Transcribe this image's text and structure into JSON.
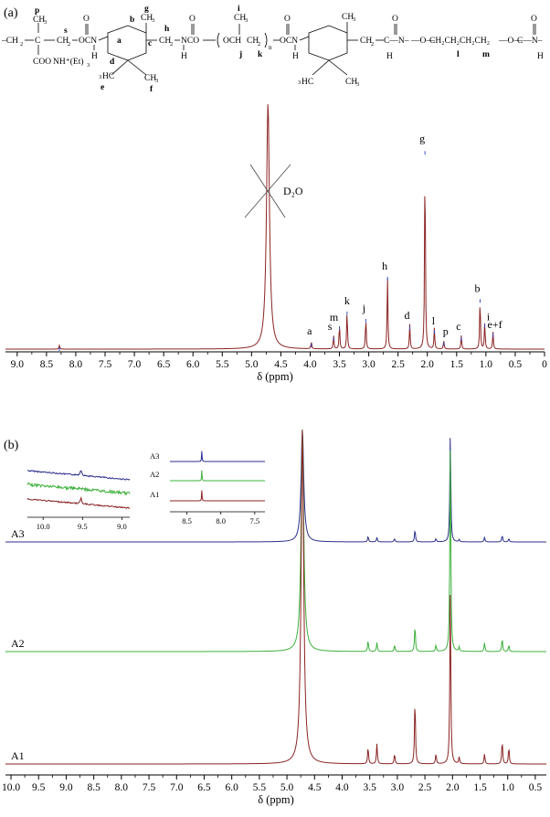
{
  "panel_a": {
    "label": "(a)",
    "structure": {
      "chain_prefix": "–CH",
      "sub2": "2",
      "c_atom": "C",
      "ch3": "CH",
      "sub3": "3",
      "ch2o": "CH",
      "coo": "COO",
      "nh_et3": "NH⁺(Et)",
      "sub3b": "3",
      "ocn": "OCN",
      "h": "H",
      "o": "O",
      "hc3": "HC",
      "hc3_pre": "3",
      "nco": "NCO",
      "och": "OCH",
      "ch_ch2": "CH",
      "n_sub": "n",
      "ch2ch2ch2ch2": "CH₂CH₂CH₂CH₂",
      "dash_o": "—O—",
      "o_n": "O",
      "cn_end": "C—N–",
      "letters": [
        "p",
        "s",
        "a",
        "b",
        "c",
        "d",
        "e",
        "f",
        "g",
        "h",
        "i",
        "j",
        "k",
        "l",
        "m"
      ]
    },
    "solvent_label": "D₂O"
  },
  "panel_b": {
    "label": "(b)"
  },
  "chart_data": [
    {
      "type": "line",
      "panel": "(a)",
      "xlabel": "δ (ppm)",
      "x_ticks": [
        "9.0",
        "8.5",
        "8.0",
        "7.5",
        "7.0",
        "6.5",
        "6.0",
        "5.5",
        "5.0",
        "4.5",
        "4.0",
        "3.5",
        "3.0",
        "2.5",
        "2.0",
        "1.5",
        "1.0",
        "0.5",
        "0"
      ],
      "xlim": [
        9.2,
        0
      ],
      "reversed_x": true,
      "series": [
        {
          "color": "#8B2323",
          "peaks": [
            {
              "x": 8.28,
              "h": 0.015
            },
            {
              "x": 4.72,
              "h": 1.0,
              "label": "D₂O"
            },
            {
              "x": 3.98,
              "h": 0.03,
              "label": "a"
            },
            {
              "x": 3.6,
              "h": 0.055,
              "label": "s"
            },
            {
              "x": 3.5,
              "h": 0.1,
              "label": "m"
            },
            {
              "x": 3.37,
              "h": 0.16,
              "label": "k"
            },
            {
              "x": 3.05,
              "h": 0.13,
              "label": "j"
            },
            {
              "x": 2.68,
              "h": 0.3,
              "label": "h"
            },
            {
              "x": 2.3,
              "h": 0.1,
              "label": "d"
            },
            {
              "x": 2.04,
              "h": 0.81,
              "label": "g"
            },
            {
              "x": 1.88,
              "h": 0.085,
              "label": "l"
            },
            {
              "x": 1.72,
              "h": 0.035,
              "label": "p"
            },
            {
              "x": 1.42,
              "h": 0.055,
              "label": "c"
            },
            {
              "x": 1.1,
              "h": 0.21,
              "label": "b"
            },
            {
              "x": 1.02,
              "h": 0.11,
              "label": "i"
            },
            {
              "x": 0.88,
              "h": 0.07,
              "label": "e+f"
            }
          ]
        }
      ]
    },
    {
      "type": "line",
      "panel": "(b)",
      "xlabel": "δ (ppm)",
      "x_ticks": [
        "10.0",
        "9.5",
        "9.0",
        "8.5",
        "8.0",
        "7.5",
        "7.0",
        "6.5",
        "6.0",
        "5.5",
        "5.0",
        "4.5",
        "4.0",
        "3.5",
        "3.0",
        "2.5",
        "2.0",
        "1.5",
        "1.0",
        "0.5"
      ],
      "xlim": [
        10.1,
        0.3
      ],
      "reversed_x": true,
      "series": [
        {
          "name": "A3",
          "color": "#2B2F8C",
          "peaks": [
            {
              "x": 4.72,
              "h": 1.0
            },
            {
              "x": 3.53,
              "h": 0.05
            },
            {
              "x": 3.37,
              "h": 0.04
            },
            {
              "x": 3.05,
              "h": 0.03
            },
            {
              "x": 2.68,
              "h": 0.11
            },
            {
              "x": 2.3,
              "h": 0.03
            },
            {
              "x": 2.04,
              "h": 0.97
            },
            {
              "x": 1.88,
              "h": 0.02
            },
            {
              "x": 1.42,
              "h": 0.04
            },
            {
              "x": 1.1,
              "h": 0.06
            },
            {
              "x": 0.98,
              "h": 0.03
            }
          ]
        },
        {
          "name": "A2",
          "color": "#3CB03C",
          "peaks": [
            {
              "x": 4.72,
              "h": 1.0
            },
            {
              "x": 3.53,
              "h": 0.05
            },
            {
              "x": 3.37,
              "h": 0.04
            },
            {
              "x": 3.05,
              "h": 0.03
            },
            {
              "x": 2.68,
              "h": 0.12
            },
            {
              "x": 2.3,
              "h": 0.03
            },
            {
              "x": 2.04,
              "h": 0.95
            },
            {
              "x": 1.88,
              "h": 0.02
            },
            {
              "x": 1.42,
              "h": 0.04
            },
            {
              "x": 1.1,
              "h": 0.06
            },
            {
              "x": 0.98,
              "h": 0.03
            }
          ]
        },
        {
          "name": "A1",
          "color": "#8B2323",
          "peaks": [
            {
              "x": 4.72,
              "h": 1.0
            },
            {
              "x": 3.53,
              "h": 0.05
            },
            {
              "x": 3.37,
              "h": 0.06
            },
            {
              "x": 3.05,
              "h": 0.03
            },
            {
              "x": 2.68,
              "h": 0.2
            },
            {
              "x": 2.3,
              "h": 0.03
            },
            {
              "x": 2.04,
              "h": 0.53
            },
            {
              "x": 1.88,
              "h": 0.02
            },
            {
              "x": 1.42,
              "h": 0.03
            },
            {
              "x": 1.1,
              "h": 0.07
            },
            {
              "x": 0.98,
              "h": 0.05
            }
          ]
        }
      ],
      "insets": [
        {
          "x_ticks": [
            "10.0",
            "9.5",
            "9.0"
          ],
          "xlim": [
            10.2,
            8.9
          ],
          "peak_x": 9.52
        },
        {
          "x_ticks": [
            "8.5",
            "8.0",
            "7.5"
          ],
          "xlim": [
            8.75,
            7.35
          ],
          "peak_x": 8.28,
          "labels": [
            "A3",
            "A2",
            "A1"
          ]
        }
      ]
    }
  ]
}
